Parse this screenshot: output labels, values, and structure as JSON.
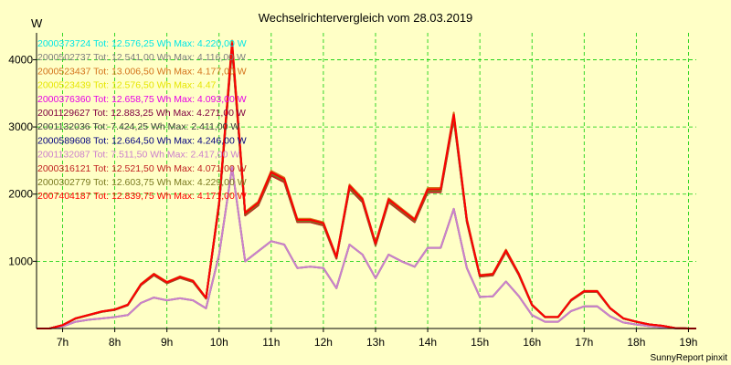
{
  "chart_data": {
    "type": "line",
    "title": "Wechselrichtervergleich vom 28.03.2019",
    "ylabel": "W",
    "footer": "SunnyReport pinxit",
    "xlim": [
      6.5,
      19.15
    ],
    "ylim": [
      0,
      4400
    ],
    "grid": true,
    "legend_placement": "top-left",
    "x_ticks": [
      {
        "value": 7,
        "label": "7h"
      },
      {
        "value": 8,
        "label": "8h"
      },
      {
        "value": 9,
        "label": "9h"
      },
      {
        "value": 10,
        "label": "10h"
      },
      {
        "value": 11,
        "label": "11h"
      },
      {
        "value": 12,
        "label": "12h"
      },
      {
        "value": 13,
        "label": "13h"
      },
      {
        "value": 14,
        "label": "14h"
      },
      {
        "value": 15,
        "label": "15h"
      },
      {
        "value": 16,
        "label": "16h"
      },
      {
        "value": 17,
        "label": "17h"
      },
      {
        "value": 18,
        "label": "18h"
      },
      {
        "value": 19,
        "label": "19h"
      }
    ],
    "y_ticks": [
      {
        "value": 1000,
        "label": "1000"
      },
      {
        "value": 2000,
        "label": "2000"
      },
      {
        "value": 3000,
        "label": "3000"
      },
      {
        "value": 4000,
        "label": "4000"
      }
    ],
    "x": [
      6.5,
      6.75,
      7.0,
      7.25,
      7.5,
      7.75,
      8.0,
      8.25,
      8.5,
      8.75,
      9.0,
      9.25,
      9.5,
      9.75,
      10.0,
      10.25,
      10.5,
      10.75,
      11.0,
      11.25,
      11.5,
      11.75,
      12.0,
      12.25,
      12.5,
      12.75,
      13.0,
      13.25,
      13.5,
      13.75,
      14.0,
      14.25,
      14.5,
      14.75,
      15.0,
      15.25,
      15.5,
      15.75,
      16.0,
      16.25,
      16.5,
      16.75,
      17.0,
      17.25,
      17.5,
      17.75,
      18.0,
      18.25,
      18.5,
      18.75,
      19.0,
      19.15
    ],
    "series": [
      {
        "name": "2000373724 Tot: 12.576,25 Wh Max: 4.220,00 W",
        "color": "#00e6e6",
        "type": "full",
        "scale": 1.0
      },
      {
        "name": "2000502737 Tot: 12.541,00 Wh Max: 4.116,00 W",
        "color": "#808080",
        "type": "full",
        "scale": 0.99
      },
      {
        "name": "2000523437 Tot: 13.006,50 Wh Max: 4.177,00 W",
        "color": "#d4731b",
        "type": "full",
        "scale": 1.02
      },
      {
        "name": "2000523439 Tot: 12.576,50 Wh Max: 4.47",
        "color": "#e6e600",
        "type": "full",
        "scale": 1.0
      },
      {
        "name": "2000376360 Tot: 12.658,75 Wh Max: 4.093,00 W",
        "color": "#e600e6",
        "type": "full",
        "scale": 1.0
      },
      {
        "name": "2001129627 Tot: 12.883,25 Wh Max: 4.271,00 W",
        "color": "#800040",
        "type": "full",
        "scale": 1.01
      },
      {
        "name": "2001132036 Tot: 7.424,25 Wh Max: 2.411,00 W",
        "color": "#404040",
        "type": "half",
        "scale": 1.0
      },
      {
        "name": "2000589608 Tot: 12.664,50 Wh Max: 4.246,00 W",
        "color": "#000080",
        "type": "full",
        "scale": 1.0
      },
      {
        "name": "2001132087 Tot: 7.511,50 Wh Max: 2.417,00 W",
        "color": "#cc80cc",
        "type": "half",
        "scale": 1.0
      },
      {
        "name": "2000316121 Tot: 12.521,50 Wh Max: 4.071,00 W",
        "color": "#c02020",
        "type": "full",
        "scale": 0.99
      },
      {
        "name": "2000302779 Tot: 12.603,75 Wh Max: 4.229,00 W",
        "color": "#7a7a20",
        "type": "full",
        "scale": 1.0
      },
      {
        "name": "2007404187 Tot: 12.839,75 Wh Max: 4.171,00 W",
        "color": "#ff0000",
        "type": "full",
        "scale": 1.01
      }
    ],
    "profiles": {
      "full": [
        0,
        0,
        50,
        150,
        200,
        250,
        280,
        350,
        650,
        800,
        680,
        760,
        700,
        450,
        1850,
        4200,
        1700,
        1850,
        2300,
        2200,
        1600,
        1600,
        1550,
        1050,
        2100,
        1900,
        1250,
        1900,
        1750,
        1600,
        2050,
        2050,
        3150,
        1600,
        780,
        800,
        1150,
        800,
        350,
        170,
        170,
        420,
        550,
        550,
        300,
        150,
        100,
        60,
        40,
        5,
        0,
        0
      ],
      "half": [
        0,
        0,
        30,
        100,
        130,
        150,
        170,
        200,
        380,
        460,
        420,
        450,
        420,
        300,
        1100,
        2400,
        1000,
        1150,
        1300,
        1250,
        900,
        920,
        900,
        600,
        1250,
        1100,
        750,
        1100,
        1000,
        920,
        1200,
        1200,
        1780,
        900,
        470,
        480,
        700,
        480,
        200,
        100,
        100,
        260,
        330,
        330,
        180,
        90,
        60,
        35,
        20,
        3,
        0,
        0
      ]
    }
  }
}
